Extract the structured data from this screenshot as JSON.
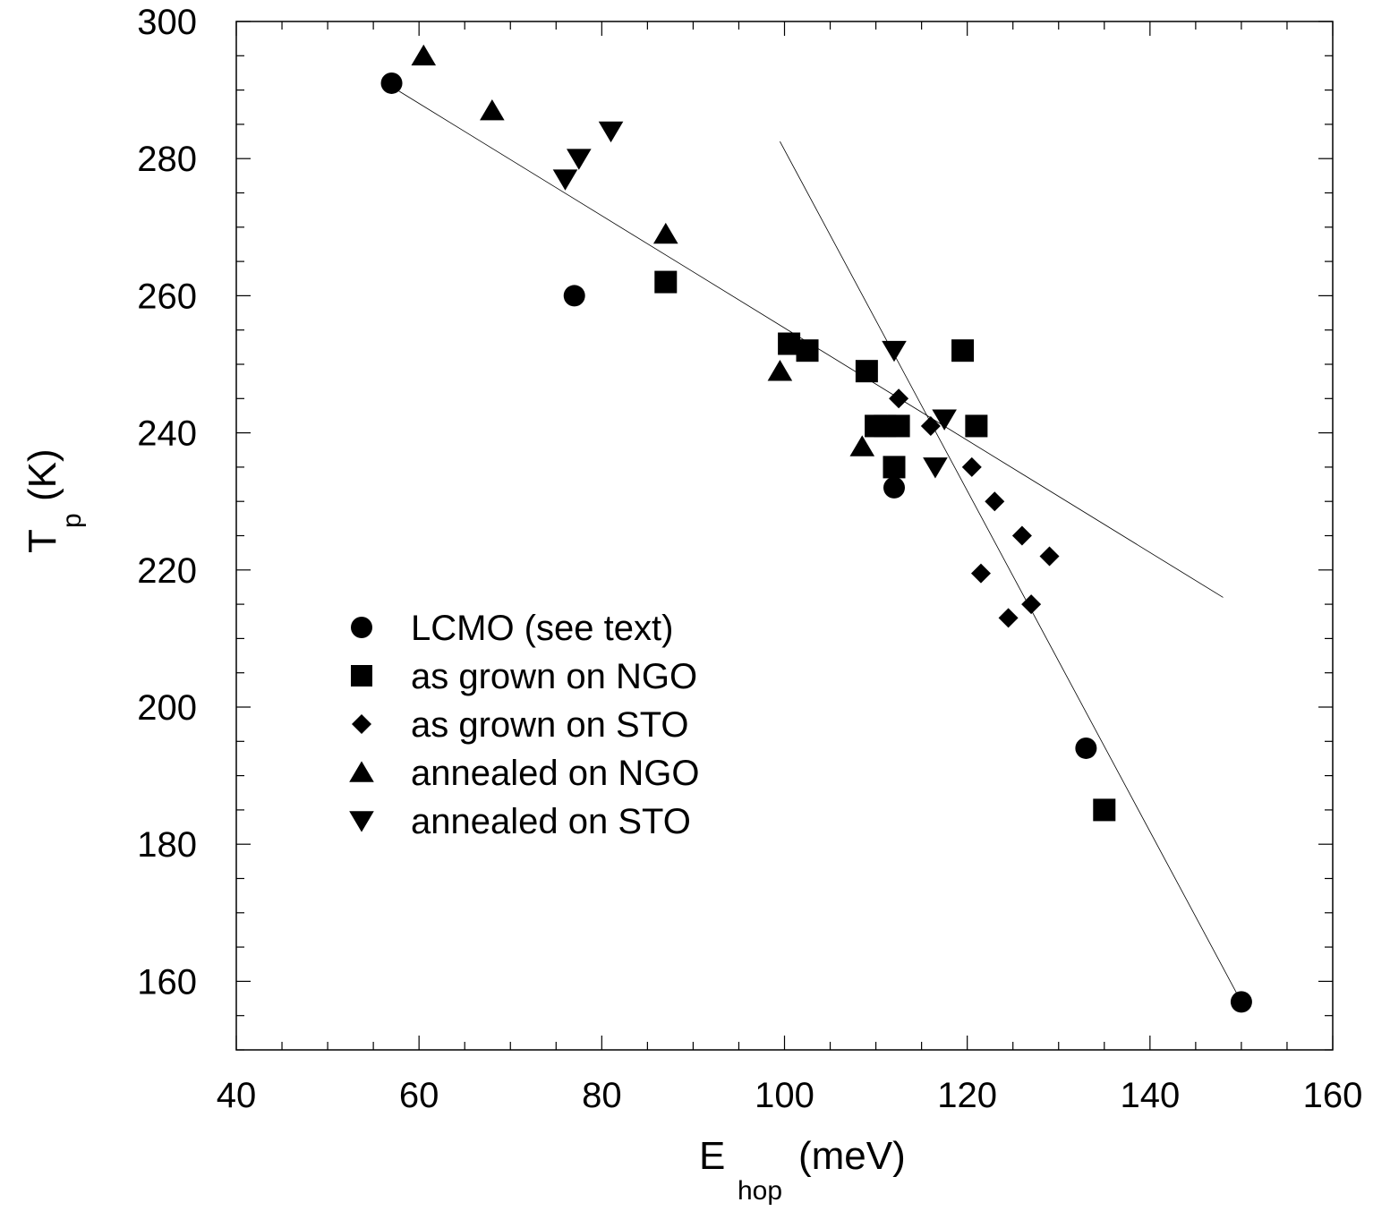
{
  "chart_data": {
    "type": "scatter",
    "title": "",
    "xlabel": {
      "main": "E",
      "sub": "hop",
      "unit": "(meV)"
    },
    "ylabel": {
      "main": "T",
      "sub": "p",
      "unit": "(K)"
    },
    "xlim": [
      40,
      160
    ],
    "ylim": [
      150,
      300
    ],
    "xticks": [
      40,
      60,
      80,
      100,
      120,
      140,
      160
    ],
    "yticks": [
      160,
      180,
      200,
      220,
      240,
      260,
      280,
      300
    ],
    "grid": false,
    "legend_position": "lower-left",
    "series": [
      {
        "name": "LCMO (see text)",
        "marker": "circle",
        "x": [
          57,
          77,
          112,
          133,
          150
        ],
        "y": [
          291,
          260,
          232,
          194,
          157
        ]
      },
      {
        "name": "as grown on NGO",
        "marker": "square",
        "x": [
          87,
          100.5,
          102.5,
          109,
          110,
          111,
          112.5,
          112,
          119.5,
          121,
          135
        ],
        "y": [
          262,
          253,
          252,
          249,
          241,
          241,
          241,
          235,
          252,
          241,
          185
        ]
      },
      {
        "name": "as grown on STO",
        "marker": "diamond",
        "x": [
          112.5,
          116,
          120.5,
          123,
          126,
          129,
          121.5,
          124.5,
          127
        ],
        "y": [
          245,
          241,
          235,
          230,
          225,
          222,
          219.5,
          213,
          215
        ]
      },
      {
        "name": "annealed on NGO",
        "marker": "triangle-up",
        "x": [
          60.5,
          68,
          87,
          99.5,
          108.5
        ],
        "y": [
          295,
          287,
          269,
          249,
          238
        ]
      },
      {
        "name": "annealed on STO",
        "marker": "triangle-down",
        "x": [
          76,
          77.5,
          81,
          112,
          117.5,
          116.5
        ],
        "y": [
          277,
          280,
          284,
          252,
          242,
          235
        ]
      }
    ],
    "fit_lines": [
      {
        "x": [
          57,
          148
        ],
        "y": [
          290.5,
          216
        ]
      },
      {
        "x": [
          99.5,
          150
        ],
        "y": [
          282.5,
          157
        ]
      }
    ]
  }
}
